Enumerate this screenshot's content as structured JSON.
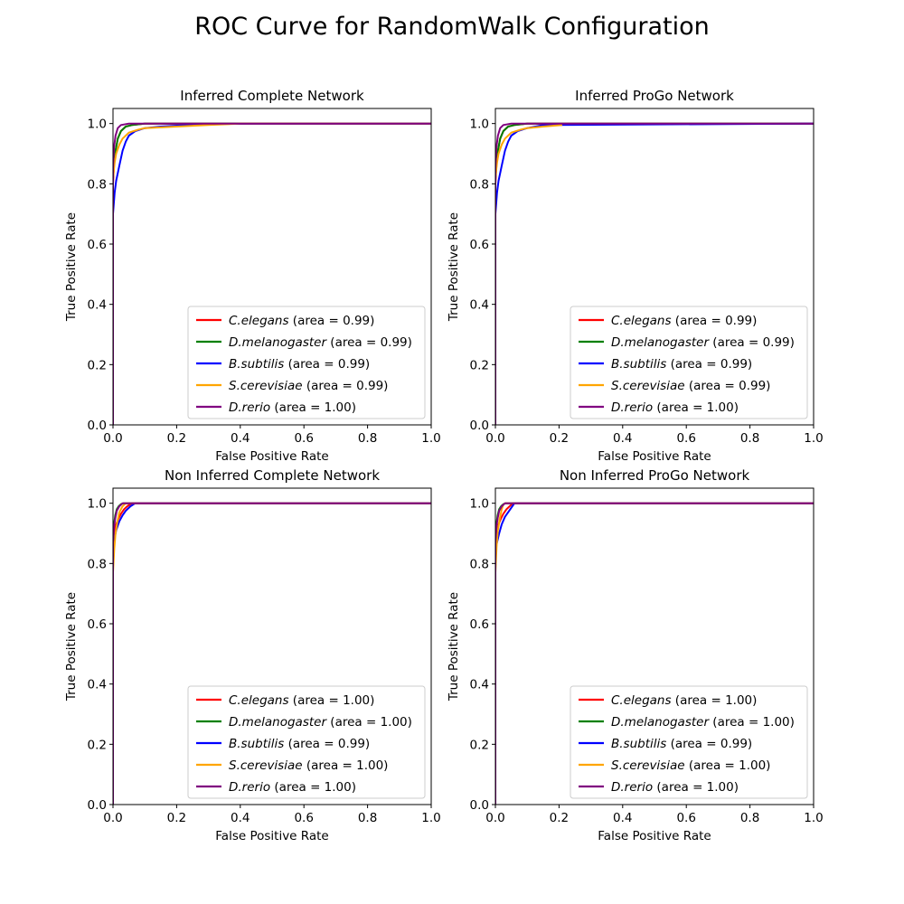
{
  "figure": {
    "title": "ROC Curve for RandomWalk Configuration"
  },
  "colors": {
    "red": "#ff0000",
    "green": "#008000",
    "blue": "#0000ff",
    "orange": "#ffa500",
    "purple": "#800080"
  },
  "chart_data": [
    {
      "type": "line",
      "title": "Inferred Complete Network",
      "xlabel": "False Positive Rate",
      "ylabel": "True Positive Rate",
      "xlim": [
        0,
        1.0
      ],
      "ylim": [
        0,
        1.05
      ],
      "xticks": [
        "0.0",
        "0.2",
        "0.4",
        "0.6",
        "0.8",
        "1.0"
      ],
      "yticks": [
        "0.0",
        "0.2",
        "0.4",
        "0.6",
        "0.8",
        "1.0"
      ],
      "legend_position": "lower-right",
      "series": [
        {
          "species": "C.elegans",
          "area_label": "(area = 0.99)",
          "color": "#ff0000",
          "x": [
            0,
            0,
            0.003,
            0.008,
            0.015,
            0.025,
            0.04,
            0.06,
            0.1,
            1.0
          ],
          "y": [
            0,
            0.8,
            0.86,
            0.91,
            0.95,
            0.975,
            0.99,
            0.995,
            1.0,
            1.0
          ]
        },
        {
          "species": "D.melanogaster",
          "area_label": "(area = 0.99)",
          "color": "#008000",
          "x": [
            0,
            0,
            0.003,
            0.008,
            0.015,
            0.025,
            0.04,
            0.06,
            0.1,
            1.0
          ],
          "y": [
            0,
            0.82,
            0.87,
            0.91,
            0.95,
            0.975,
            0.99,
            0.995,
            1.0,
            1.0
          ]
        },
        {
          "species": "B.subtilis",
          "area_label": "(area = 0.99)",
          "color": "#0000ff",
          "x": [
            0,
            0,
            0.005,
            0.01,
            0.02,
            0.03,
            0.04,
            0.05,
            0.07,
            0.1,
            0.15,
            0.3,
            1.0
          ],
          "y": [
            0,
            0.7,
            0.77,
            0.81,
            0.86,
            0.91,
            0.94,
            0.96,
            0.975,
            0.985,
            0.99,
            0.999,
            1.0
          ]
        },
        {
          "species": "S.cerevisiae",
          "area_label": "(area = 0.99)",
          "color": "#ffa500",
          "x": [
            0,
            0,
            0.005,
            0.01,
            0.02,
            0.03,
            0.05,
            0.08,
            0.1,
            0.2,
            0.3,
            0.4,
            1.0
          ],
          "y": [
            0,
            0.82,
            0.87,
            0.9,
            0.93,
            0.95,
            0.97,
            0.98,
            0.985,
            0.99,
            0.995,
            1.0,
            1.0
          ]
        },
        {
          "species": "D.rerio",
          "area_label": "(area = 1.00)",
          "color": "#800080",
          "x": [
            0,
            0,
            0.003,
            0.008,
            0.015,
            0.025,
            0.05,
            1.0
          ],
          "y": [
            0,
            0.85,
            0.92,
            0.96,
            0.985,
            0.995,
            1.0,
            1.0
          ]
        }
      ]
    },
    {
      "type": "line",
      "title": "Inferred ProGo Network",
      "xlabel": "False Positive Rate",
      "ylabel": "True Positive Rate",
      "xlim": [
        0,
        1.0
      ],
      "ylim": [
        0,
        1.05
      ],
      "xticks": [
        "0.0",
        "0.2",
        "0.4",
        "0.6",
        "0.8",
        "1.0"
      ],
      "yticks": [
        "0.0",
        "0.2",
        "0.4",
        "0.6",
        "0.8",
        "1.0"
      ],
      "legend_position": "lower-right",
      "series": [
        {
          "species": "C.elegans",
          "area_label": "(area = 0.99)",
          "color": "#ff0000",
          "x": [
            0,
            0,
            0.003,
            0.008,
            0.015,
            0.025,
            0.04,
            0.06,
            0.1,
            1.0
          ],
          "y": [
            0,
            0.8,
            0.86,
            0.91,
            0.95,
            0.975,
            0.99,
            0.995,
            1.0,
            1.0
          ]
        },
        {
          "species": "D.melanogaster",
          "area_label": "(area = 0.99)",
          "color": "#008000",
          "x": [
            0,
            0,
            0.003,
            0.008,
            0.015,
            0.025,
            0.04,
            0.06,
            0.1,
            1.0
          ],
          "y": [
            0,
            0.82,
            0.87,
            0.91,
            0.95,
            0.975,
            0.99,
            0.995,
            1.0,
            1.0
          ]
        },
        {
          "species": "B.subtilis",
          "area_label": "(area = 0.99)",
          "color": "#0000ff",
          "x": [
            0,
            0,
            0.005,
            0.01,
            0.02,
            0.03,
            0.04,
            0.05,
            0.07,
            0.1,
            0.15,
            1.0
          ],
          "y": [
            0,
            0.7,
            0.77,
            0.81,
            0.86,
            0.91,
            0.94,
            0.96,
            0.975,
            0.985,
            0.995,
            1.0
          ]
        },
        {
          "species": "S.cerevisiae",
          "area_label": "(area = 0.99)",
          "color": "#ffa500",
          "x": [
            0,
            0,
            0.005,
            0.01,
            0.02,
            0.03,
            0.05,
            0.08,
            0.1,
            0.15,
            0.21
          ],
          "y": [
            0,
            0.82,
            0.87,
            0.9,
            0.93,
            0.95,
            0.97,
            0.98,
            0.985,
            0.99,
            0.995
          ]
        },
        {
          "species": "D.rerio",
          "area_label": "(area = 1.00)",
          "color": "#800080",
          "x": [
            0,
            0,
            0.003,
            0.008,
            0.015,
            0.025,
            0.05,
            1.0
          ],
          "y": [
            0,
            0.85,
            0.92,
            0.96,
            0.985,
            0.995,
            1.0,
            1.0
          ]
        }
      ]
    },
    {
      "type": "line",
      "title": "Non Inferred Complete Network",
      "xlabel": "False Positive Rate",
      "ylabel": "True Positive Rate",
      "xlim": [
        0,
        1.0
      ],
      "ylim": [
        0,
        1.05
      ],
      "xticks": [
        "0.0",
        "0.2",
        "0.4",
        "0.6",
        "0.8",
        "1.0"
      ],
      "yticks": [
        "0.0",
        "0.2",
        "0.4",
        "0.6",
        "0.8",
        "1.0"
      ],
      "legend_position": "lower-right",
      "series": [
        {
          "species": "C.elegans",
          "area_label": "(area = 1.00)",
          "color": "#ff0000",
          "x": [
            0,
            0,
            0.004,
            0.01,
            0.018,
            0.025,
            0.035,
            0.045,
            0.06,
            1.0
          ],
          "y": [
            0,
            0.86,
            0.9,
            0.93,
            0.95,
            0.965,
            0.98,
            0.99,
            1.0,
            1.0
          ]
        },
        {
          "species": "D.melanogaster",
          "area_label": "(area = 1.00)",
          "color": "#008000",
          "x": [
            0,
            0,
            0.003,
            0.007,
            0.012,
            0.018,
            0.025,
            0.032,
            1.0
          ],
          "y": [
            0,
            0.89,
            0.93,
            0.96,
            0.98,
            0.99,
            0.997,
            1.0,
            1.0
          ]
        },
        {
          "species": "B.subtilis",
          "area_label": "(area = 0.99)",
          "color": "#0000ff",
          "x": [
            0,
            0,
            0.004,
            0.01,
            0.02,
            0.03,
            0.04,
            0.055,
            0.07,
            1.0
          ],
          "y": [
            0,
            0.84,
            0.88,
            0.91,
            0.94,
            0.96,
            0.975,
            0.99,
            1.0,
            1.0
          ]
        },
        {
          "species": "S.cerevisiae",
          "area_label": "(area = 1.00)",
          "color": "#ffa500",
          "x": [
            0,
            0,
            0.004,
            0.008,
            0.014,
            0.02,
            0.03,
            0.04,
            1.0
          ],
          "y": [
            0,
            0.77,
            0.85,
            0.9,
            0.94,
            0.97,
            0.99,
            1.0,
            1.0
          ]
        },
        {
          "species": "D.rerio",
          "area_label": "(area = 1.00)",
          "color": "#800080",
          "x": [
            0,
            0,
            0.003,
            0.007,
            0.012,
            0.02,
            0.03,
            1.0
          ],
          "y": [
            0,
            0.87,
            0.92,
            0.95,
            0.975,
            0.99,
            1.0,
            1.0
          ]
        }
      ]
    },
    {
      "type": "line",
      "title": "Non Inferred ProGo Network",
      "xlabel": "False Positive Rate",
      "ylabel": "True Positive Rate",
      "xlim": [
        0,
        1.0
      ],
      "ylim": [
        0,
        1.05
      ],
      "xticks": [
        "0.0",
        "0.2",
        "0.4",
        "0.6",
        "0.8",
        "1.0"
      ],
      "yticks": [
        "0.0",
        "0.2",
        "0.4",
        "0.6",
        "0.8",
        "1.0"
      ],
      "legend_position": "lower-right",
      "series": [
        {
          "species": "C.elegans",
          "area_label": "(area = 1.00)",
          "color": "#ff0000",
          "x": [
            0,
            0,
            0.004,
            0.01,
            0.018,
            0.025,
            0.035,
            0.045,
            0.055,
            1.0
          ],
          "y": [
            0,
            0.86,
            0.9,
            0.93,
            0.95,
            0.965,
            0.98,
            0.99,
            1.0,
            1.0
          ]
        },
        {
          "species": "D.melanogaster",
          "area_label": "(area = 1.00)",
          "color": "#008000",
          "x": [
            0,
            0,
            0.003,
            0.007,
            0.012,
            0.018,
            0.025,
            0.032,
            1.0
          ],
          "y": [
            0,
            0.89,
            0.93,
            0.96,
            0.98,
            0.99,
            0.997,
            1.0,
            1.0
          ]
        },
        {
          "species": "B.subtilis",
          "area_label": "(area = 0.99)",
          "color": "#0000ff",
          "x": [
            0,
            0,
            0.005,
            0.012,
            0.02,
            0.03,
            0.04,
            0.05,
            0.06,
            1.0
          ],
          "y": [
            0,
            0.84,
            0.87,
            0.9,
            0.93,
            0.955,
            0.97,
            0.985,
            1.0,
            1.0
          ]
        },
        {
          "species": "S.cerevisiae",
          "area_label": "(area = 1.00)",
          "color": "#ffa500",
          "x": [
            0,
            0,
            0.004,
            0.008,
            0.014,
            0.02,
            0.025,
            0.03,
            1.0
          ],
          "y": [
            0,
            0.77,
            0.86,
            0.91,
            0.95,
            0.98,
            0.995,
            1.0,
            1.0
          ]
        },
        {
          "species": "D.rerio",
          "area_label": "(area = 1.00)",
          "color": "#800080",
          "x": [
            0,
            0,
            0.003,
            0.007,
            0.012,
            0.02,
            0.03,
            1.0
          ],
          "y": [
            0,
            0.87,
            0.92,
            0.95,
            0.975,
            0.99,
            1.0,
            1.0
          ]
        }
      ]
    }
  ]
}
